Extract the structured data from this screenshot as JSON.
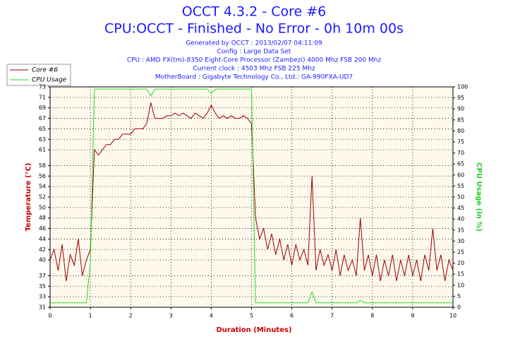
{
  "chart_data": {
    "type": "line",
    "title": "OCCT 4.3.2 - Core #6",
    "subtitle": "CPU:OCCT - Finished - No Error - 0h 10m 00s",
    "info_lines": [
      "Generated by OCCT : 2013/02/07 04:11:09",
      "Config : Large Data Set",
      "CPU : AMD FX(tm)-8350 Eight-Core Processor (Zambezi) 4000 Mhz FSB 200 Mhz",
      "Current clock : 4503 Mhz FSB 225 Mhz",
      "MotherBoard : Gigabyte Technology Co., Ltd.: GA-990FXA-UD7"
    ],
    "xlabel": "Duration (Minutes)",
    "ylabel": "Temperature (°C)",
    "y2label": "CPU Usage (in %)",
    "xlim": [
      0,
      10
    ],
    "xticks": [
      0,
      1,
      2,
      3,
      4,
      5,
      6,
      7,
      8,
      9,
      10
    ],
    "ylim": [
      31,
      73
    ],
    "yticks": [
      31,
      33,
      35,
      37,
      40,
      42,
      44,
      46,
      48,
      50,
      52,
      54,
      56,
      58,
      61,
      63,
      65,
      67,
      69,
      71,
      73
    ],
    "y2lim": [
      0,
      100
    ],
    "y2ticks": [
      0,
      5,
      10,
      15,
      20,
      25,
      30,
      35,
      40,
      45,
      50,
      55,
      60,
      65,
      70,
      75,
      80,
      85,
      90,
      95,
      100
    ],
    "grid": true,
    "legend": "top-left",
    "x": [
      0,
      0.1,
      0.2,
      0.3,
      0.4,
      0.5,
      0.6,
      0.7,
      0.8,
      0.9,
      1,
      1.1,
      1.2,
      1.3,
      1.4,
      1.5,
      1.6,
      1.7,
      1.8,
      1.9,
      2,
      2.1,
      2.2,
      2.3,
      2.4,
      2.5,
      2.6,
      2.7,
      2.8,
      2.9,
      3,
      3.1,
      3.2,
      3.3,
      3.4,
      3.5,
      3.6,
      3.7,
      3.8,
      3.9,
      4,
      4.1,
      4.2,
      4.3,
      4.4,
      4.5,
      4.6,
      4.7,
      4.8,
      4.9,
      5,
      5.1,
      5.2,
      5.3,
      5.4,
      5.5,
      5.6,
      5.7,
      5.8,
      5.9,
      6,
      6.1,
      6.2,
      6.3,
      6.4,
      6.5,
      6.6,
      6.7,
      6.8,
      6.9,
      7,
      7.1,
      7.2,
      7.3,
      7.4,
      7.5,
      7.6,
      7.7,
      7.8,
      7.9,
      8,
      8.1,
      8.2,
      8.3,
      8.4,
      8.5,
      8.6,
      8.7,
      8.8,
      8.9,
      9,
      9.1,
      9.2,
      9.3,
      9.4,
      9.5,
      9.6,
      9.7,
      9.8,
      9.9,
      10
    ],
    "series": [
      {
        "name": "Core #6",
        "color": "#990000",
        "axis": "y",
        "values": [
          40,
          42,
          38,
          43,
          36,
          41,
          39,
          44,
          37,
          40,
          42,
          61,
          60,
          61,
          62,
          62,
          63,
          63,
          64,
          64,
          64,
          65,
          65,
          65,
          66,
          70,
          67,
          67,
          67,
          67.5,
          67.5,
          68,
          67.5,
          68,
          67.5,
          67,
          68,
          67.5,
          67,
          68,
          69.5,
          68,
          67,
          67.5,
          67,
          67.5,
          67,
          67,
          67.5,
          67,
          66,
          48,
          44,
          46,
          42,
          45,
          41,
          44,
          40,
          43,
          39,
          43,
          40,
          42,
          39,
          56,
          38,
          42,
          39,
          41,
          38,
          42,
          37,
          41,
          38,
          40,
          37,
          48,
          38,
          41,
          37,
          41,
          36,
          40,
          37,
          41,
          36,
          40,
          37,
          41,
          37,
          40,
          36,
          41,
          38,
          46,
          38,
          41,
          36,
          40,
          38
        ]
      },
      {
        "name": "CPU Usage",
        "color": "#22dd22",
        "axis": "y2",
        "values": [
          2,
          2,
          2,
          2,
          2,
          2,
          2,
          2,
          2,
          2,
          20,
          99,
          99,
          99,
          99,
          99,
          99,
          99,
          99,
          99,
          99,
          99,
          99,
          99,
          99,
          96,
          99,
          99,
          99,
          99,
          99,
          99,
          99,
          99,
          99,
          99,
          99,
          99,
          99,
          99,
          97,
          99,
          99,
          99,
          99,
          99,
          99,
          99,
          99,
          99,
          99,
          2,
          2,
          2,
          2,
          2,
          2,
          2,
          2,
          2,
          2,
          2,
          2,
          2,
          2,
          7,
          2,
          2,
          2,
          2,
          2,
          2,
          2,
          2,
          2,
          2,
          2,
          3,
          2,
          2,
          2,
          2,
          2,
          2,
          2,
          2,
          2,
          2,
          2,
          2,
          2,
          2,
          2,
          2,
          2,
          2,
          2,
          2,
          2,
          2,
          2
        ]
      }
    ]
  }
}
